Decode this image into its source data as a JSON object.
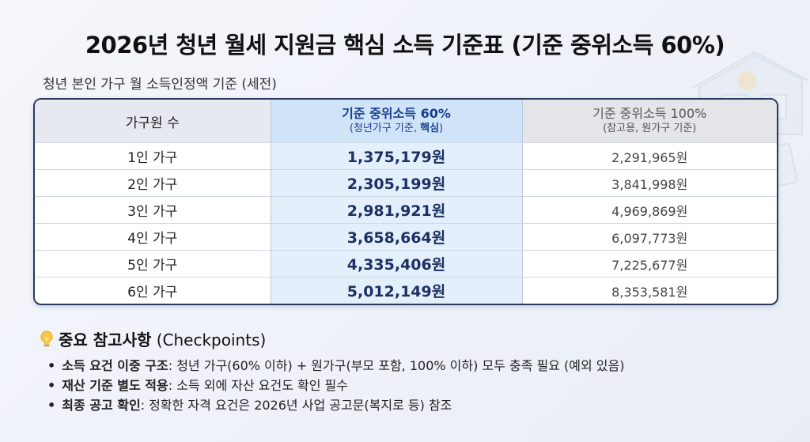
{
  "title": "2026년 청년 월세 지원금 핵심 소득 기준표 (기준 중위소득 60%)",
  "subtitle": "청년 본인 가구 월 소득인정액 기준 (세전)",
  "table": {
    "headers": {
      "household": "가구원 수",
      "col60_main": "기준 중위소득 60%",
      "col60_sub_prefix": "(청년가구 기준, ",
      "col60_sub_bold": "핵심",
      "col60_sub_suffix": ")",
      "col100_main": "기준 중위소득 100%",
      "col100_sub": "(참고용, 원가구 기준)"
    },
    "rows": [
      {
        "household": "1인 가구",
        "median60": "1,375,179원",
        "median100": "2,291,965원"
      },
      {
        "household": "2인 가구",
        "median60": "2,305,199원",
        "median100": "3,841,998원"
      },
      {
        "household": "3인 가구",
        "median60": "2,981,921원",
        "median100": "4,969,869원"
      },
      {
        "household": "4인 가구",
        "median60": "3,658,664원",
        "median100": "6,097,773원"
      },
      {
        "household": "5인 가구",
        "median60": "4,335,406원",
        "median100": "7,225,677원"
      },
      {
        "household": "6인 가구",
        "median60": "5,012,149원",
        "median100": "8,353,581원"
      }
    ]
  },
  "checkpoints": {
    "icon": "lightbulb-icon",
    "title_bold": "중요 참고사항",
    "title_rest": " (Checkpoints)",
    "items": [
      {
        "key": "소득 요건 이중 구조",
        "text": ": 청년 가구(60% 이하) + 원가구(부모 포함, 100% 이하) 모두 충족 필요 (예외 있음)"
      },
      {
        "key": "재산 기준 별도 적용",
        "text": ": 소득 외에 자산 요건도 확인 필수"
      },
      {
        "key": "최종 공고 확인",
        "text": ": 정확한 자격 요건은 2026년 사업 공고문(복지로 등) 참조"
      }
    ]
  },
  "colors": {
    "accent": "#1d2f63",
    "highlight_column": "#e3effb",
    "header_highlight": "#cfe4f8"
  }
}
